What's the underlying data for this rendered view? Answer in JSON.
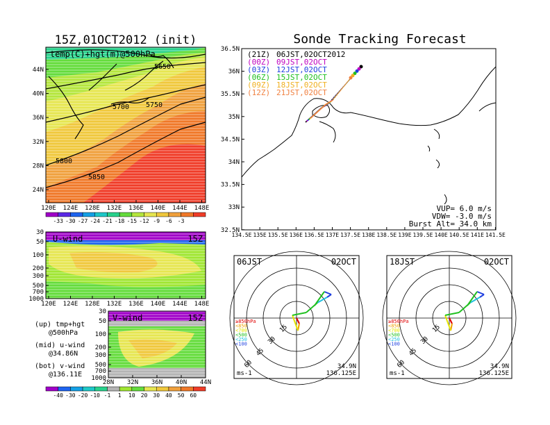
{
  "left": {
    "title": "15Z,01OCT2012 (init)",
    "top_map": {
      "label": "temp(C)+hgt(m)@500hPa",
      "lat_ticks": [
        "44N",
        "40N",
        "36N",
        "32N",
        "28N",
        "24N"
      ],
      "lon_ticks": [
        "120E",
        "124E",
        "128E",
        "132E",
        "136E",
        "140E",
        "144E",
        "148E"
      ],
      "contour_labels": [
        "5650",
        "5700",
        "5750",
        "5800",
        "5850"
      ],
      "colorbar": [
        "-33",
        "-30",
        "-27",
        "-24",
        "-21",
        "-18",
        "-15",
        "-12",
        "-9",
        "-6",
        "-3"
      ],
      "colorbar_colors": [
        "#a000c8",
        "#5a28e6",
        "#1e64f0",
        "#14a0e6",
        "#1ec8c8",
        "#28d28c",
        "#64dc3c",
        "#b4e63c",
        "#e6e650",
        "#f0c83c",
        "#f0a03c",
        "#f07828",
        "#f03c28"
      ]
    },
    "u_panel": {
      "label": "U-wind",
      "time": "15Z",
      "y_ticks": [
        "30",
        "50",
        "100",
        "200",
        "300",
        "500",
        "700",
        "1000"
      ],
      "x_ticks": [
        "120E",
        "124E",
        "128E",
        "132E",
        "136E",
        "140E",
        "144E",
        "148E"
      ]
    },
    "v_panel": {
      "label": "V-wind",
      "time": "15Z",
      "y_ticks": [
        "30",
        "50",
        "100",
        "200",
        "300",
        "500",
        "700",
        "1000"
      ],
      "x_ticks": [
        "28N",
        "32N",
        "36N",
        "40N",
        "44N"
      ]
    },
    "legend": {
      "up1": "(up) tmp+hgt",
      "up2": "@500hPa",
      "mid1": "(mid) u-wind",
      "mid2": "@34.86N",
      "bot1": "(bot) v-wind",
      "bot2": "@136.11E"
    },
    "wind_colorbar": [
      "-40",
      "-30",
      "-20",
      "-10",
      "-1",
      "1",
      "10",
      "20",
      "30",
      "40",
      "50",
      "60"
    ],
    "wind_colorbar_colors": [
      "#a000c8",
      "#1e64f0",
      "#14a0e6",
      "#1ec8c8",
      "#28d28c",
      "#b4b4b4",
      "#a0e632",
      "#64dc3c",
      "#e6e650",
      "#f0c83c",
      "#f0a03c",
      "#f07828",
      "#f03c28"
    ]
  },
  "track": {
    "title": "Sonde Tracking Forecast",
    "lat_ticks": [
      "36.5N",
      "36N",
      "35.5N",
      "35N",
      "34.5N",
      "34N",
      "33.5N",
      "33N",
      "32.5N"
    ],
    "lon_ticks": [
      "134.5E",
      "135E",
      "135.5E",
      "136E",
      "136.5E",
      "137E",
      "137.5E",
      "138E",
      "138.5E",
      "139E",
      "139.5E",
      "140E",
      "140.5E",
      "141E",
      "141.5E"
    ],
    "launches": [
      {
        "utc": "(21Z)",
        "jst": "06JST,02OCT2012",
        "color": "#000000"
      },
      {
        "utc": "(00Z)",
        "jst": "09JST,02OCT",
        "color": "#c000c0"
      },
      {
        "utc": "(03Z)",
        "jst": "12JST,02OCT",
        "color": "#2040e0"
      },
      {
        "utc": "(06Z)",
        "jst": "15JST,02OCT",
        "color": "#20c020"
      },
      {
        "utc": "(09Z)",
        "jst": "18JST,02OCT",
        "color": "#f0b020"
      },
      {
        "utc": "(12Z)",
        "jst": "21JST,02OCT",
        "color": "#f08040"
      }
    ],
    "vup": "VUP= 6.0 m/s",
    "vdw": "VDW= -3.0 m/s",
    "burst": "Burst Alt= 34.0 km"
  },
  "hodo1": {
    "time": "06JST",
    "date": "02OCT",
    "ring_labels": [
      "15",
      "30",
      "45",
      "60"
    ],
    "unit": "ms-1",
    "lat": "34.9N",
    "lon": "136.125E",
    "levels": [
      {
        "label": "≥850hPa",
        "color": "#e00000"
      },
      {
        "label": "<850",
        "color": "#f0a000"
      },
      {
        "label": "<700",
        "color": "#e6e600"
      },
      {
        "label": "<500",
        "color": "#20c020"
      },
      {
        "label": "<250",
        "color": "#20c0e0"
      },
      {
        "label": "<100",
        "color": "#2040e0"
      }
    ]
  },
  "hodo2": {
    "time": "18JST",
    "date": "02OCT",
    "ring_labels": [
      "15",
      "30",
      "45",
      "60"
    ],
    "unit": "ms-1",
    "lat": "34.9N",
    "lon": "136.125E",
    "levels": [
      {
        "label": "≥850hPa",
        "color": "#e00000"
      },
      {
        "label": "<850",
        "color": "#f0a000"
      },
      {
        "label": "<700",
        "color": "#e6e600"
      },
      {
        "label": "<500",
        "color": "#20c020"
      },
      {
        "label": "<250",
        "color": "#20c0e0"
      },
      {
        "label": "<100",
        "color": "#2040e0"
      }
    ]
  }
}
